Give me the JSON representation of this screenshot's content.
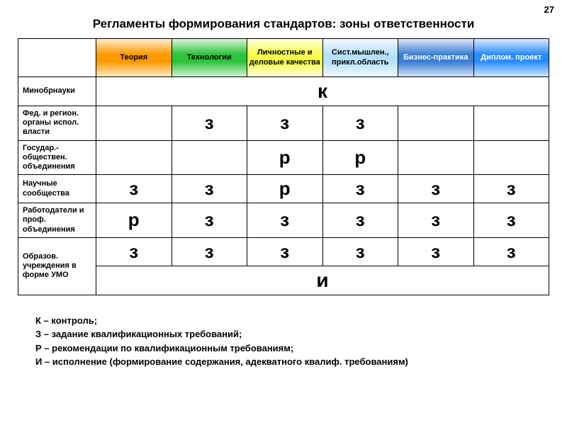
{
  "page_number": "27",
  "title": "Регламенты формирования стандартов: зоны ответственности",
  "columns": [
    {
      "label": "Теория",
      "bg": "#ff9a00",
      "fg": "#000000"
    },
    {
      "label": "Технологии",
      "bg": "#2dc43a",
      "fg": "#000000"
    },
    {
      "label": "Личностные и деловые качества",
      "bg": "#f7ff4a",
      "fg": "#000000"
    },
    {
      "label": "Сист.мышлен., прикл.область",
      "bg": "#b8e1ff",
      "fg": "#000000"
    },
    {
      "label": "Бизнес-практика",
      "bg": "#3a7fd6",
      "fg": "#ffffff"
    },
    {
      "label": "Диплом. проект",
      "bg": "#2a8cff",
      "fg": "#ffffff"
    }
  ],
  "rows": [
    {
      "label": "Минобрнауки",
      "span": "к"
    },
    {
      "label": "Фед. и регион. органы испол. власти",
      "cells": [
        "",
        "з",
        "з",
        "з",
        "",
        ""
      ]
    },
    {
      "label": "Государ.-обществен. объединения",
      "cells": [
        "",
        "",
        "р",
        "р",
        "",
        ""
      ]
    },
    {
      "label": "Научные сообщества",
      "cells": [
        "з",
        "з",
        "р",
        "з",
        "з",
        "з"
      ]
    },
    {
      "label": "Работодатели и проф. объединения",
      "cells": [
        "р",
        "з",
        "з",
        "з",
        "з",
        "з"
      ]
    },
    {
      "label": "Образов. учреждения в форме УМО",
      "cells": [
        "з",
        "з",
        "з",
        "з",
        "з",
        "з"
      ],
      "span_after": "и"
    }
  ],
  "legend": [
    "К – контроль;",
    "З – задание квалификационных требований;",
    "Р – рекомендации по квалификационным требованиям;",
    "И – исполнение (формирование содержания, адекватного квалиф. требованиям)"
  ]
}
